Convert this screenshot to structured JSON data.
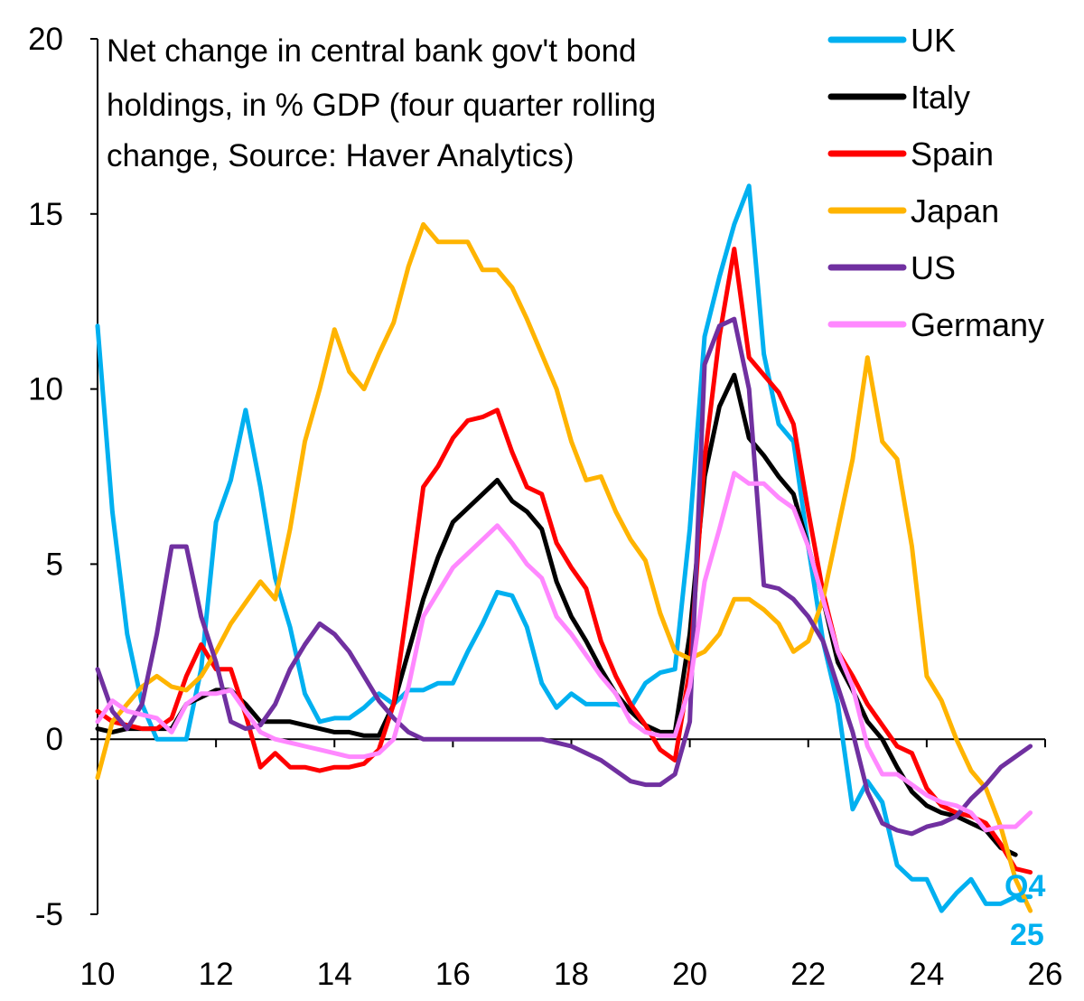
{
  "chart_data": {
    "type": "line",
    "title_lines": [
      "Net change in central bank gov't bond",
      "holdings, in % GDP (four quarter rolling",
      "change, Source: Haver Analytics)"
    ],
    "xlim": [
      2010,
      2026
    ],
    "ylim": [
      -5,
      20
    ],
    "x_ticks": [
      2010,
      2012,
      2014,
      2016,
      2018,
      2020,
      2022,
      2024,
      2026
    ],
    "x_tick_labels": [
      "10",
      "12",
      "14",
      "16",
      "18",
      "20",
      "22",
      "24",
      "26"
    ],
    "y_ticks": [
      -5,
      0,
      5,
      10,
      15,
      20
    ],
    "y_tick_labels": [
      "-5",
      "0",
      "5",
      "10",
      "15",
      "20"
    ],
    "grid": false,
    "legend_position": "top-right",
    "annotation": {
      "line1": "Q4",
      "line2": "25",
      "color": "#00B0F0"
    },
    "series": [
      {
        "name": "UK",
        "color": "#00B0F0",
        "x": [
          2010,
          2010.25,
          2010.5,
          2010.75,
          2011,
          2011.25,
          2011.5,
          2011.75,
          2012,
          2012.25,
          2012.5,
          2012.75,
          2013,
          2013.25,
          2013.5,
          2013.75,
          2014,
          2014.25,
          2014.5,
          2014.75,
          2015,
          2015.25,
          2015.5,
          2015.75,
          2016,
          2016.25,
          2016.5,
          2016.75,
          2017,
          2017.25,
          2017.5,
          2017.75,
          2018,
          2018.25,
          2018.5,
          2018.75,
          2019,
          2019.25,
          2019.5,
          2019.75,
          2020,
          2020.25,
          2020.5,
          2020.75,
          2021,
          2021.25,
          2021.5,
          2021.75,
          2022,
          2022.25,
          2022.5,
          2022.75,
          2023,
          2023.25,
          2023.5,
          2023.75,
          2024,
          2024.25,
          2024.5,
          2024.75,
          2025,
          2025.25,
          2025.5,
          2025.75
        ],
        "y": [
          11.8,
          6.5,
          3,
          1,
          0,
          0,
          0,
          2,
          6.2,
          7.4,
          9.4,
          7.2,
          4.6,
          3.2,
          1.3,
          0.5,
          0.6,
          0.6,
          0.9,
          1.3,
          1,
          1.4,
          1.4,
          1.6,
          1.6,
          2.5,
          3.3,
          4.2,
          4.1,
          3.2,
          1.6,
          0.9,
          1.3,
          1,
          1,
          1,
          0.9,
          1.6,
          1.9,
          2,
          6,
          11.5,
          13.2,
          14.7,
          15.8,
          11,
          9,
          8.5,
          5.5,
          2.8,
          1,
          -2,
          -1.2,
          -1.8,
          -3.6,
          -4,
          -4,
          -4.9,
          -4.4,
          -4,
          -4.7,
          -4.7,
          -4.5,
          -4.5
        ]
      },
      {
        "name": "Italy",
        "color": "#000000",
        "x": [
          2010,
          2010.25,
          2010.5,
          2010.75,
          2011,
          2011.25,
          2011.5,
          2011.75,
          2012,
          2012.25,
          2012.5,
          2012.75,
          2013,
          2013.25,
          2013.5,
          2013.75,
          2014,
          2014.25,
          2014.5,
          2014.75,
          2015,
          2015.25,
          2015.5,
          2015.75,
          2016,
          2016.25,
          2016.5,
          2016.75,
          2017,
          2017.25,
          2017.5,
          2017.75,
          2018,
          2018.25,
          2018.5,
          2018.75,
          2019,
          2019.25,
          2019.5,
          2019.75,
          2020,
          2020.25,
          2020.5,
          2020.75,
          2021,
          2021.25,
          2021.5,
          2021.75,
          2022,
          2022.25,
          2022.5,
          2022.75,
          2023,
          2023.25,
          2023.5,
          2023.75,
          2024,
          2024.25,
          2024.5,
          2024.75,
          2025,
          2025.25,
          2025.5
        ],
        "y": [
          0.3,
          0.2,
          0.3,
          0.3,
          0.3,
          0.3,
          1,
          1.2,
          1.4,
          1.4,
          1,
          0.5,
          0.5,
          0.5,
          0.4,
          0.3,
          0.2,
          0.2,
          0.1,
          0.1,
          1,
          2.5,
          4,
          5.2,
          6.2,
          6.6,
          7,
          7.4,
          6.8,
          6.5,
          6,
          4.5,
          3.5,
          2.8,
          2,
          1.3,
          0.8,
          0.4,
          0.2,
          0.2,
          3,
          7.5,
          9.5,
          10.4,
          8.6,
          8.1,
          7.5,
          7,
          5.5,
          4,
          2.2,
          1.4,
          0.5,
          0,
          -0.8,
          -1.5,
          -1.9,
          -2.1,
          -2.2,
          -2.4,
          -2.6,
          -3.1,
          -3.3
        ]
      },
      {
        "name": "Spain",
        "color": "#FF0000",
        "x": [
          2010,
          2010.25,
          2010.5,
          2010.75,
          2011,
          2011.25,
          2011.5,
          2011.75,
          2012,
          2012.25,
          2012.5,
          2012.75,
          2013,
          2013.25,
          2013.5,
          2013.75,
          2014,
          2014.25,
          2014.5,
          2014.75,
          2015,
          2015.25,
          2015.5,
          2015.75,
          2016,
          2016.25,
          2016.5,
          2016.75,
          2017,
          2017.25,
          2017.5,
          2017.75,
          2018,
          2018.25,
          2018.5,
          2018.75,
          2019,
          2019.25,
          2019.5,
          2019.75,
          2020,
          2020.25,
          2020.5,
          2020.75,
          2021,
          2021.25,
          2021.5,
          2021.75,
          2022,
          2022.25,
          2022.5,
          2022.75,
          2023,
          2023.25,
          2023.5,
          2023.75,
          2024,
          2024.25,
          2024.5,
          2024.75,
          2025,
          2025.25,
          2025.5,
          2025.75
        ],
        "y": [
          0.8,
          0.5,
          0.4,
          0.3,
          0.3,
          0.6,
          1.8,
          2.7,
          2,
          2,
          0.7,
          -0.8,
          -0.4,
          -0.8,
          -0.8,
          -0.9,
          -0.8,
          -0.8,
          -0.7,
          -0.3,
          1,
          4,
          7.2,
          7.8,
          8.6,
          9.1,
          9.2,
          9.4,
          8.2,
          7.2,
          7,
          5.6,
          4.9,
          4.3,
          2.8,
          1.8,
          1,
          0.4,
          -0.3,
          -0.6,
          2,
          8,
          11.5,
          14,
          10.9,
          10.4,
          9.9,
          9,
          6.5,
          4.2,
          2.5,
          1.8,
          1,
          0.4,
          -0.2,
          -0.4,
          -1.4,
          -1.9,
          -2.1,
          -2.2,
          -2.4,
          -3,
          -3.7,
          -3.8
        ]
      },
      {
        "name": "Japan",
        "color": "#FFB400",
        "x": [
          2010,
          2010.25,
          2010.5,
          2010.75,
          2011,
          2011.25,
          2011.5,
          2011.75,
          2012,
          2012.25,
          2012.5,
          2012.75,
          2013,
          2013.25,
          2013.5,
          2013.75,
          2014,
          2014.25,
          2014.5,
          2014.75,
          2015,
          2015.25,
          2015.5,
          2015.75,
          2016,
          2016.25,
          2016.5,
          2016.75,
          2017,
          2017.25,
          2017.5,
          2017.75,
          2018,
          2018.25,
          2018.5,
          2018.75,
          2019,
          2019.25,
          2019.5,
          2019.75,
          2020,
          2020.25,
          2020.5,
          2020.75,
          2021,
          2021.25,
          2021.5,
          2021.75,
          2022,
          2022.25,
          2022.5,
          2022.75,
          2023,
          2023.25,
          2023.5,
          2023.75,
          2024,
          2024.25,
          2024.5,
          2024.75,
          2025,
          2025.25,
          2025.5,
          2025.75
        ],
        "y": [
          -1.1,
          0.5,
          1,
          1.5,
          1.8,
          1.5,
          1.4,
          1.8,
          2.5,
          3.3,
          3.9,
          4.5,
          4,
          6,
          8.5,
          10,
          11.7,
          10.5,
          10,
          11,
          11.9,
          13.5,
          14.7,
          14.2,
          14.2,
          14.2,
          13.4,
          13.4,
          12.9,
          12,
          11,
          10,
          8.5,
          7.4,
          7.5,
          6.5,
          5.7,
          5.1,
          3.6,
          2.5,
          2.3,
          2.5,
          3,
          4,
          4,
          3.7,
          3.3,
          2.5,
          2.8,
          4,
          6,
          8,
          10.9,
          8.5,
          8,
          5.5,
          1.8,
          1.1,
          0,
          -0.9,
          -1.4,
          -2.5,
          -4,
          -4.9
        ]
      },
      {
        "name": "US",
        "color": "#7030A0",
        "x": [
          2010,
          2010.25,
          2010.5,
          2010.75,
          2011,
          2011.25,
          2011.5,
          2011.75,
          2012,
          2012.25,
          2012.5,
          2012.75,
          2013,
          2013.25,
          2013.5,
          2013.75,
          2014,
          2014.25,
          2014.5,
          2014.75,
          2015,
          2015.25,
          2015.5,
          2015.75,
          2016,
          2016.25,
          2016.5,
          2016.75,
          2017,
          2017.25,
          2017.5,
          2017.75,
          2018,
          2018.25,
          2018.5,
          2018.75,
          2019,
          2019.25,
          2019.5,
          2019.75,
          2020,
          2020.25,
          2020.5,
          2020.75,
          2021,
          2021.25,
          2021.5,
          2021.75,
          2022,
          2022.25,
          2022.5,
          2022.75,
          2023,
          2023.25,
          2023.5,
          2023.75,
          2024,
          2024.25,
          2024.5,
          2024.75,
          2025,
          2025.25,
          2025.5,
          2025.75
        ],
        "y": [
          2,
          0.8,
          0.3,
          1,
          3,
          5.5,
          5.5,
          3.5,
          2.2,
          0.5,
          0.3,
          0.4,
          1,
          2,
          2.7,
          3.3,
          3,
          2.5,
          1.8,
          1.1,
          0.6,
          0.2,
          0,
          0,
          0,
          0,
          0,
          0,
          0,
          0,
          0,
          -0.1,
          -0.2,
          -0.4,
          -0.6,
          -0.9,
          -1.2,
          -1.3,
          -1.3,
          -1,
          0.5,
          10.7,
          11.8,
          12,
          10,
          4.4,
          4.3,
          4,
          3.5,
          2.8,
          1.5,
          0.2,
          -1.5,
          -2.4,
          -2.6,
          -2.7,
          -2.5,
          -2.4,
          -2.2,
          -1.7,
          -1.3,
          -0.8,
          -0.5,
          -0.2
        ]
      },
      {
        "name": "Germany",
        "color": "#FF88FF",
        "x": [
          2010,
          2010.25,
          2010.5,
          2010.75,
          2011,
          2011.25,
          2011.5,
          2011.75,
          2012,
          2012.25,
          2012.5,
          2012.75,
          2013,
          2013.25,
          2013.5,
          2013.75,
          2014,
          2014.25,
          2014.5,
          2014.75,
          2015,
          2015.25,
          2015.5,
          2015.75,
          2016,
          2016.25,
          2016.5,
          2016.75,
          2017,
          2017.25,
          2017.5,
          2017.75,
          2018,
          2018.25,
          2018.5,
          2018.75,
          2019,
          2019.25,
          2019.5,
          2019.75,
          2020,
          2020.25,
          2020.5,
          2020.75,
          2021,
          2021.25,
          2021.5,
          2021.75,
          2022,
          2022.25,
          2022.5,
          2022.75,
          2023,
          2023.25,
          2023.5,
          2023.75,
          2024,
          2024.25,
          2024.5,
          2024.75,
          2025,
          2025.25,
          2025.5,
          2025.75
        ],
        "y": [
          0.5,
          1.1,
          0.8,
          0.7,
          0.6,
          0.2,
          1,
          1.3,
          1.3,
          1.4,
          0.8,
          0.2,
          0,
          -0.1,
          -0.2,
          -0.3,
          -0.4,
          -0.5,
          -0.5,
          -0.4,
          0,
          1.5,
          3.5,
          4.2,
          4.9,
          5.3,
          5.7,
          6.1,
          5.6,
          5,
          4.6,
          3.5,
          3,
          2.4,
          1.8,
          1.3,
          0.5,
          0.2,
          0.1,
          0.1,
          1.5,
          4.5,
          6,
          7.6,
          7.3,
          7.3,
          6.9,
          6.6,
          5.5,
          4,
          2.5,
          1.5,
          -0.2,
          -1,
          -1,
          -1.3,
          -1.6,
          -1.8,
          -1.9,
          -2.1,
          -2.6,
          -2.5,
          -2.5,
          -2.1
        ]
      }
    ]
  }
}
